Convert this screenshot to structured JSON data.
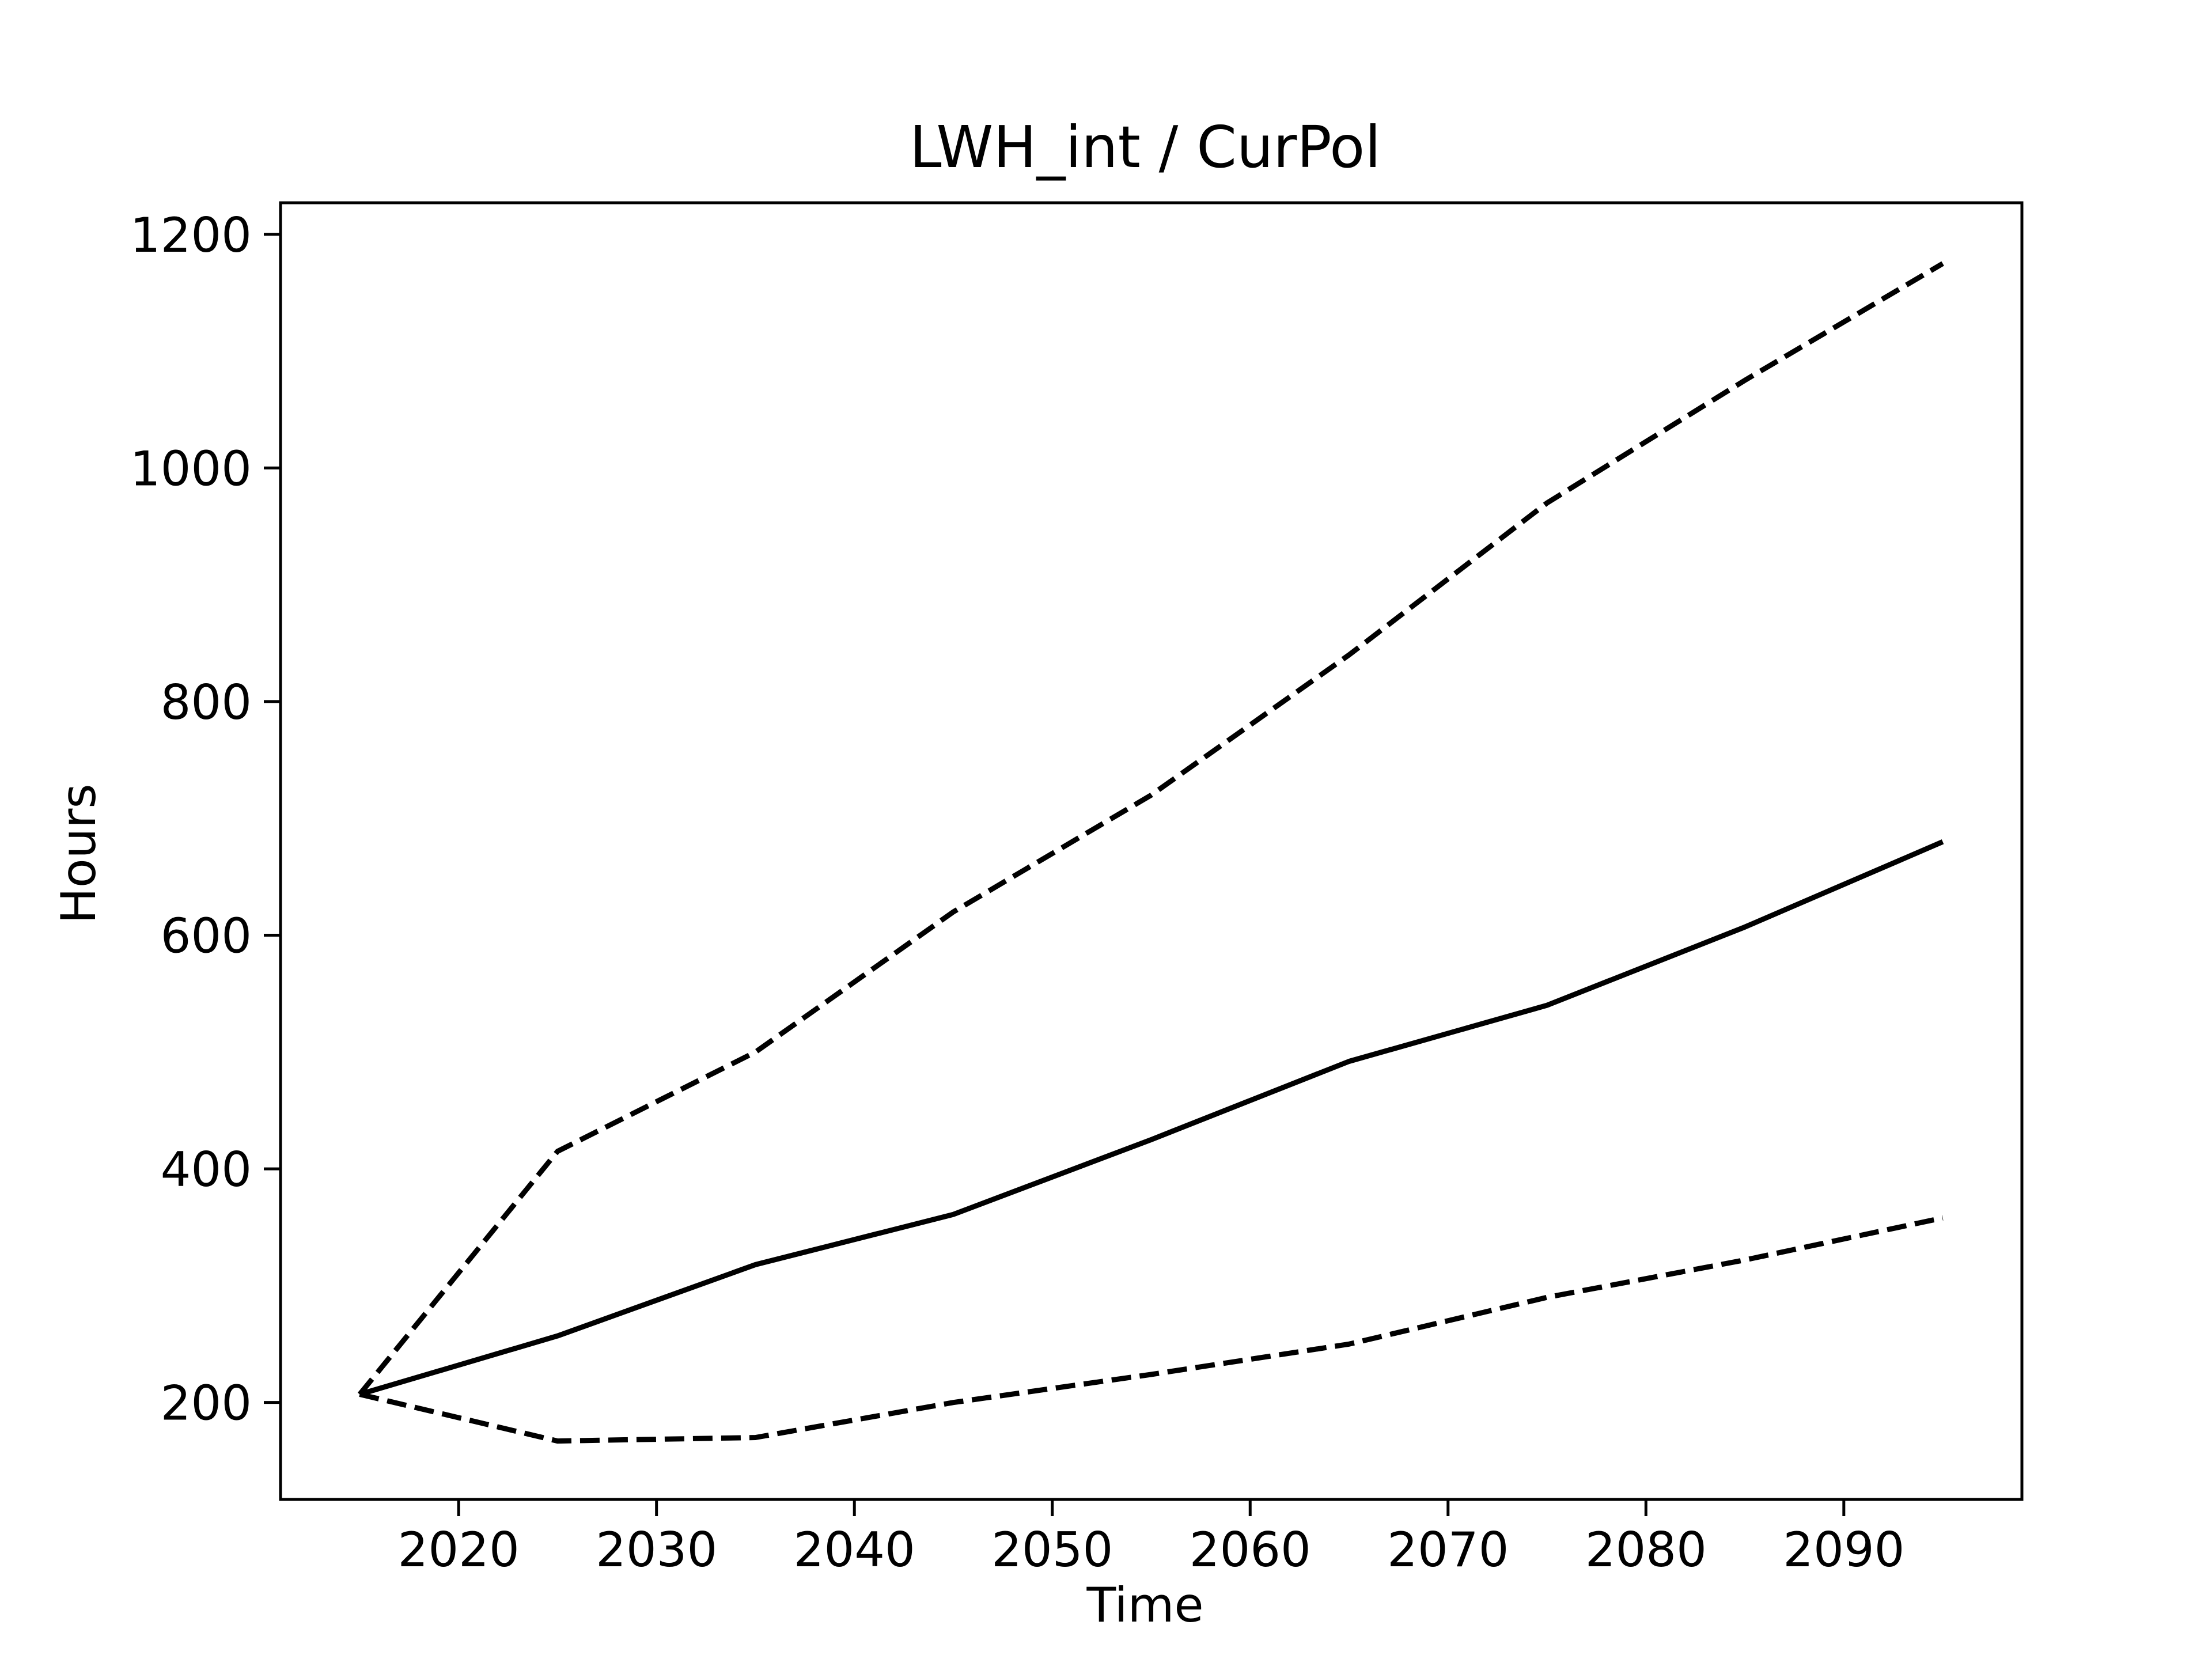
{
  "chart_data": {
    "type": "line",
    "title": "LWH_int / CurPol",
    "xlabel": "Time",
    "ylabel": "Hours",
    "xlim": [
      2011,
      2099
    ],
    "ylim": [
      117,
      1227
    ],
    "xticks": [
      2020,
      2030,
      2040,
      2050,
      2060,
      2070,
      2080,
      2090
    ],
    "yticks": [
      200,
      400,
      600,
      800,
      1000,
      1200
    ],
    "grid": false,
    "legend": "none",
    "x": [
      2015,
      2025,
      2035,
      2045,
      2055,
      2065,
      2075,
      2085,
      2095
    ],
    "series": [
      {
        "style": "dashed",
        "color": "#000000",
        "values": [
          207,
          415,
          500,
          620,
          720,
          840,
          970,
          1075,
          1175
        ]
      },
      {
        "style": "solid",
        "color": "#000000",
        "values": [
          207,
          257,
          318,
          361,
          425,
          492,
          540,
          607,
          680
        ]
      },
      {
        "style": "dashed",
        "color": "#000000",
        "values": [
          207,
          167,
          170,
          200,
          224,
          250,
          290,
          322,
          358
        ]
      }
    ]
  }
}
